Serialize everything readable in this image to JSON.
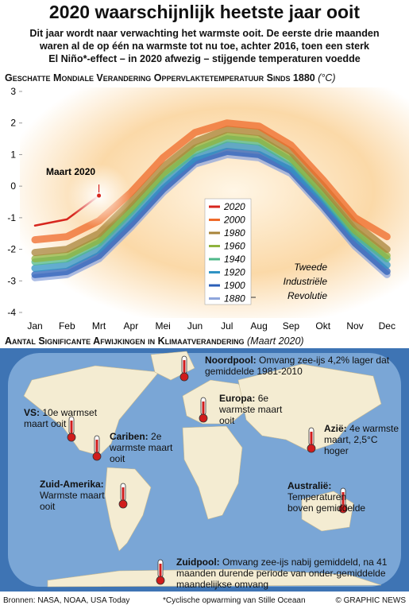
{
  "title": "2020 waarschijnlijk heetste jaar ooit",
  "subtitle_lines": [
    "Dit jaar wordt naar verwachting het warmste ooit. De eerste drie maanden",
    "waren al de op één na warmste tot nu toe, achter 2016, toen een sterk",
    "El Niño*-effect – in 2020 afwezig – stijgende temperaturen voedde"
  ],
  "chart_data": {
    "type": "line",
    "title": "Geschatte Mondiale Verandering Oppervlaktetemperatuur Sinds 1880",
    "y_unit": "(°C)",
    "categories": [
      "Jan",
      "Feb",
      "Mrt",
      "Apr",
      "Mei",
      "Jun",
      "Jul",
      "Aug",
      "Sep",
      "Okt",
      "Nov",
      "Dec"
    ],
    "ylim": [
      -4,
      3
    ],
    "yticks": [
      -4,
      -3,
      -2,
      -1,
      0,
      1,
      2,
      3
    ],
    "series": [
      {
        "name": "1880",
        "color": "#8fa6dc",
        "values": [
          -2.9,
          -2.8,
          -2.3,
          -1.3,
          -0.2,
          0.7,
          1.0,
          0.9,
          0.4,
          -0.7,
          -1.9,
          -2.8
        ]
      },
      {
        "name": "1900",
        "color": "#2b5fb8",
        "values": [
          -2.8,
          -2.7,
          -2.2,
          -1.2,
          -0.1,
          0.8,
          1.1,
          1.0,
          0.5,
          -0.6,
          -1.8,
          -2.7
        ]
      },
      {
        "name": "1920",
        "color": "#2f93c4",
        "values": [
          -2.6,
          -2.5,
          -2.0,
          -1.0,
          0.1,
          0.9,
          1.3,
          1.2,
          0.6,
          -0.4,
          -1.6,
          -2.5
        ]
      },
      {
        "name": "1940",
        "color": "#4fb88a",
        "values": [
          -2.4,
          -2.3,
          -1.8,
          -0.8,
          0.3,
          1.1,
          1.5,
          1.4,
          0.8,
          -0.3,
          -1.5,
          -2.3
        ]
      },
      {
        "name": "1960",
        "color": "#8fb33e",
        "values": [
          -2.3,
          -2.2,
          -1.7,
          -0.7,
          0.4,
          1.2,
          1.6,
          1.5,
          0.9,
          -0.2,
          -1.4,
          -2.2
        ]
      },
      {
        "name": "1980",
        "color": "#a8843a",
        "values": [
          -2.1,
          -2.0,
          -1.5,
          -0.5,
          0.6,
          1.4,
          1.8,
          1.7,
          1.1,
          0.0,
          -1.2,
          -2.0
        ]
      },
      {
        "name": "2000",
        "color": "#ef6a2a",
        "values": [
          -1.7,
          -1.6,
          -1.1,
          -0.2,
          0.9,
          1.7,
          2.0,
          1.9,
          1.3,
          0.2,
          -1.0,
          -1.6
        ]
      },
      {
        "name": "2020",
        "color": "#d7261e",
        "values": [
          -1.25,
          -1.05,
          -0.3,
          null,
          null,
          null,
          null,
          null,
          null,
          null,
          null,
          null
        ]
      }
    ],
    "annotations": [
      "Maart 2020",
      "Tweede",
      "Industriële",
      "Revolutie"
    ]
  },
  "map": {
    "title": "Aantal Significante Afwijkingen in Klimaatverandering",
    "date": "(Maart 2020)",
    "callouts": [
      {
        "label": "Noordpool:",
        "text": "Omvang zee-ijs 4,2% lager dat gemiddelde 1981-2010"
      },
      {
        "label": "Europa:",
        "text": "6e warmste maart ooit"
      },
      {
        "label": "VS:",
        "text": "10e warmset maart ooit"
      },
      {
        "label": "Cariben:",
        "text": "2e warmste maart ooit"
      },
      {
        "label": "Azië:",
        "text": "4e warmste maart, 2,5°C hoger"
      },
      {
        "label": "Zuid-Amerika:",
        "text": "Warmste maart ooit"
      },
      {
        "label": "Australië:",
        "text": "Temperaturen boven gemiddelde"
      },
      {
        "label": "Zuidpool:",
        "text": "Omvang zee-ijs nabij gemiddeld, na 41 maanden durende periode van onder-gemiddelde maandelijkse omvang"
      }
    ]
  },
  "footer": {
    "sources": "Bronnen: NASA, NOAA, USA Today",
    "note": "*Cyclische opwarming van Stille Oceaan",
    "credit": "© GRAPHIC NEWS"
  }
}
